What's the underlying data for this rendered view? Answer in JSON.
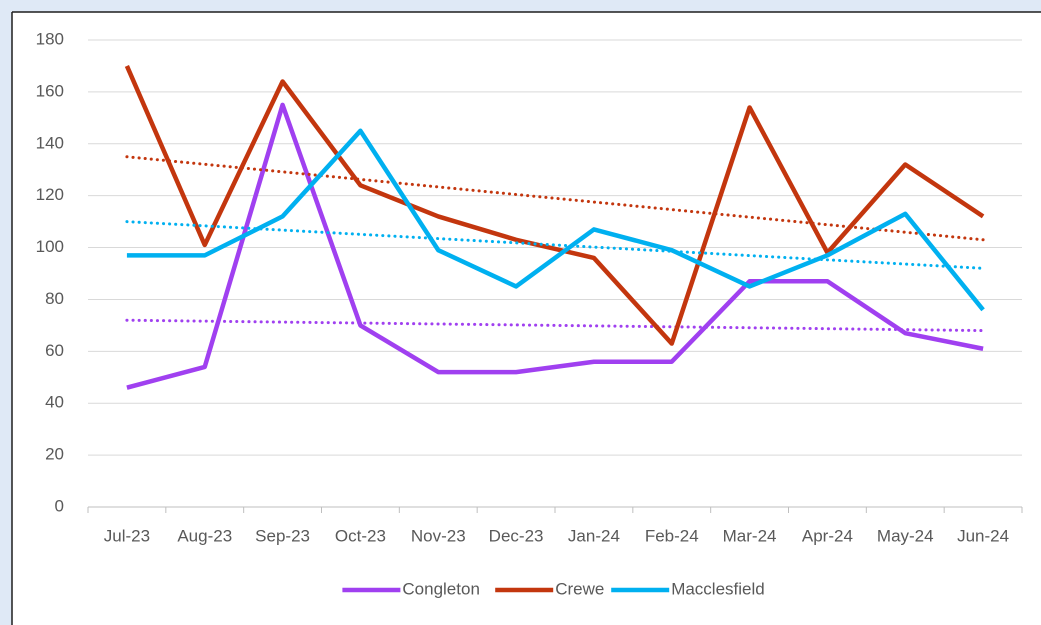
{
  "chart_data": {
    "type": "line",
    "categories": [
      "Jul-23",
      "Aug-23",
      "Sep-23",
      "Oct-23",
      "Nov-23",
      "Dec-23",
      "Jan-24",
      "Feb-24",
      "Mar-24",
      "Apr-24",
      "May-24",
      "Jun-24"
    ],
    "series": [
      {
        "name": "Congleton",
        "color": "#a040f0",
        "values": [
          46,
          54,
          155,
          70,
          52,
          52,
          56,
          56,
          87,
          87,
          67,
          61
        ],
        "trend": [
          72,
          68
        ]
      },
      {
        "name": "Crewe",
        "color": "#c3360e",
        "values": [
          170,
          101,
          164,
          124,
          112,
          103,
          96,
          63,
          154,
          98,
          132,
          112
        ],
        "trend": [
          135,
          103
        ]
      },
      {
        "name": "Macclesfield",
        "color": "#00b0f0",
        "values": [
          97,
          97,
          112,
          145,
          99,
          85,
          107,
          99,
          85,
          97,
          113,
          76
        ],
        "trend": [
          110,
          92
        ]
      }
    ],
    "ylim": [
      0,
      180
    ],
    "yticks": [
      0,
      20,
      40,
      60,
      80,
      100,
      120,
      140,
      160,
      180
    ],
    "grid": true,
    "legend": "bottom"
  }
}
